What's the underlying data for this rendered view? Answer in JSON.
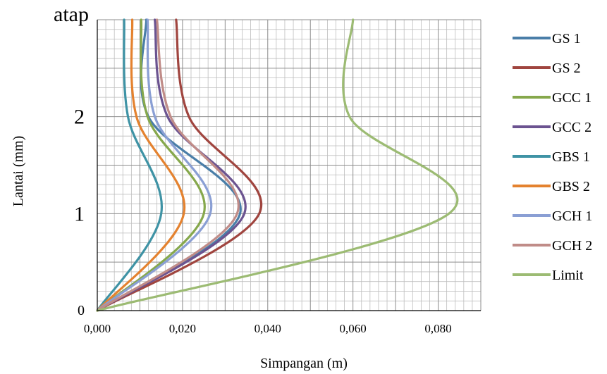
{
  "chart_data": {
    "type": "line",
    "title": "",
    "xlabel": "Simpangan (m)",
    "ylabel": "Lantai (mm)",
    "xlim": [
      0,
      0.09
    ],
    "ylim": [
      0,
      3
    ],
    "x_ticks": [
      0,
      0.02,
      0.04,
      0.06,
      0.08
    ],
    "x_tick_labels": [
      "0,000",
      "0,020",
      "0,040",
      "0,060",
      "0,080"
    ],
    "y_ticks": [
      0,
      1,
      2,
      3
    ],
    "y_tick_labels": [
      "0",
      "1",
      "2",
      "atap"
    ],
    "grid": true,
    "legend_position": "right",
    "series": [
      {
        "name": "GS 1",
        "color": "#4a7ea8",
        "points": [
          [
            0,
            0
          ],
          [
            0.0335,
            1
          ],
          [
            0.012,
            2
          ],
          [
            0.0115,
            3
          ]
        ]
      },
      {
        "name": "GS 2",
        "color": "#a0453f",
        "points": [
          [
            0,
            0
          ],
          [
            0.038,
            1
          ],
          [
            0.0215,
            2
          ],
          [
            0.0185,
            3
          ]
        ]
      },
      {
        "name": "GCC 1",
        "color": "#86a84c",
        "points": [
          [
            0,
            0
          ],
          [
            0.025,
            1
          ],
          [
            0.0118,
            2
          ],
          [
            0.0103,
            3
          ]
        ]
      },
      {
        "name": "GCC 2",
        "color": "#6b5390",
        "points": [
          [
            0,
            0
          ],
          [
            0.0345,
            1
          ],
          [
            0.0165,
            2
          ],
          [
            0.0135,
            3
          ]
        ]
      },
      {
        "name": "GBS 1",
        "color": "#3f93a5",
        "points": [
          [
            0,
            0
          ],
          [
            0.015,
            1
          ],
          [
            0.0072,
            2
          ],
          [
            0.0063,
            3
          ]
        ]
      },
      {
        "name": "GBS 2",
        "color": "#e4822f",
        "points": [
          [
            0,
            0
          ],
          [
            0.0203,
            1
          ],
          [
            0.0092,
            2
          ],
          [
            0.0082,
            3
          ]
        ]
      },
      {
        "name": "GCH 1",
        "color": "#8a9fd4",
        "points": [
          [
            0,
            0
          ],
          [
            0.0265,
            1
          ],
          [
            0.0135,
            2
          ],
          [
            0.0118,
            3
          ]
        ]
      },
      {
        "name": "GCH 2",
        "color": "#c08c88",
        "points": [
          [
            0,
            0
          ],
          [
            0.0328,
            1
          ],
          [
            0.0172,
            2
          ],
          [
            0.014,
            3
          ]
        ]
      },
      {
        "name": "Limit",
        "color": "#9cbb73",
        "points": [
          [
            0,
            0
          ],
          [
            0.0825,
            1
          ],
          [
            0.0592,
            2
          ],
          [
            0.06,
            3
          ]
        ]
      }
    ]
  }
}
